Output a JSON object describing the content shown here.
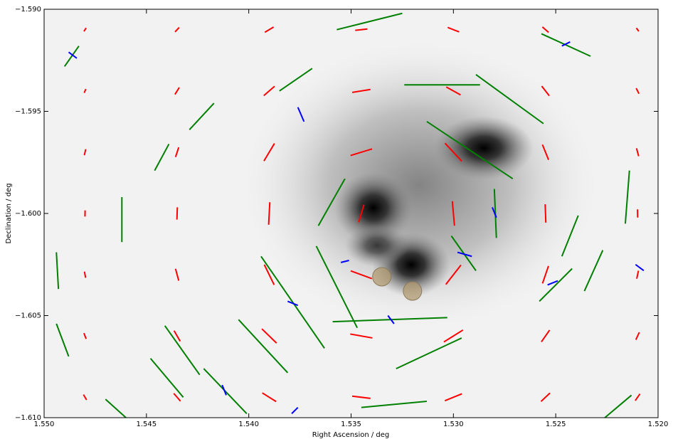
{
  "chart_data": {
    "type": "vector",
    "xlabel": "Right Ascension / deg",
    "ylabel": "Declination / deg",
    "xlim": [
      1.55,
      1.52
    ],
    "ylim": [
      -1.61,
      -1.59
    ],
    "xticks": [
      {
        "value": 1.55,
        "label": "1.550"
      },
      {
        "value": 1.545,
        "label": "1.545"
      },
      {
        "value": 1.54,
        "label": "1.540"
      },
      {
        "value": 1.535,
        "label": "1.535"
      },
      {
        "value": 1.53,
        "label": "1.530"
      },
      {
        "value": 1.525,
        "label": "1.525"
      },
      {
        "value": 1.52,
        "label": "1.520"
      }
    ],
    "yticks": [
      {
        "value": -1.61,
        "label": "−1.610"
      },
      {
        "value": -1.605,
        "label": "−1.605"
      },
      {
        "value": -1.6,
        "label": "−1.600"
      },
      {
        "value": -1.595,
        "label": "−1.595"
      },
      {
        "value": -1.59,
        "label": "−1.590"
      }
    ],
    "field": {
      "color": "#ff0000",
      "grid_x": [
        1.548,
        1.5435,
        1.539,
        1.5345,
        1.53,
        1.5255,
        1.521
      ],
      "grid_y": [
        -1.609,
        -1.606,
        -1.603,
        -1.6,
        -1.597,
        -1.594,
        -1.591
      ],
      "angles": [
        [
          121,
          131,
          148,
          173,
          22,
          43,
          55
        ],
        [
          111,
          120,
          136,
          170,
          32,
          55,
          65
        ],
        [
          100.5,
          105,
          116,
          160,
          52,
          71,
          78
        ],
        [
          88.8,
          88,
          87,
          73,
          95,
          92,
          91
        ],
        [
          77,
          72,
          59,
          17,
          133,
          112,
          105
        ],
        [
          66.5,
          58,
          41,
          9,
          151,
          128,
          117
        ],
        [
          57,
          47,
          31,
          6,
          159,
          139,
          127
        ]
      ],
      "lengths": [
        [
          0.3,
          0.5,
          0.8,
          0.9,
          0.9,
          0.6,
          0.4
        ],
        [
          0.3,
          0.6,
          1.0,
          1.1,
          1.1,
          0.7,
          0.4
        ],
        [
          0.3,
          0.6,
          1.1,
          1.1,
          1.2,
          0.9,
          0.4
        ],
        [
          0.3,
          0.6,
          1.1,
          0.9,
          1.2,
          0.9,
          0.4
        ],
        [
          0.3,
          0.5,
          1.0,
          1.1,
          1.2,
          0.8,
          0.4
        ],
        [
          0.2,
          0.4,
          0.7,
          0.9,
          0.8,
          0.6,
          0.3
        ],
        [
          0.2,
          0.3,
          0.5,
          0.6,
          0.6,
          0.4,
          0.2
        ]
      ]
    },
    "series": [
      {
        "color": "#008000",
        "segments": [
          [
            1.5357,
            -1.591,
            1.5325,
            -1.5902
          ],
          [
            1.5324,
            -1.5937,
            1.5287,
            -1.5937
          ],
          [
            1.5289,
            -1.5932,
            1.5256,
            -1.5956
          ],
          [
            1.5313,
            -1.5955,
            1.5271,
            -1.5983
          ],
          [
            1.5366,
            -1.6006,
            1.5353,
            -1.5983
          ],
          [
            1.5367,
            -1.6016,
            1.5347,
            -1.6056
          ],
          [
            1.5394,
            -1.6021,
            1.5363,
            -1.6066
          ],
          [
            1.5359,
            -1.6053,
            1.5303,
            -1.6051
          ],
          [
            1.5328,
            -1.6076,
            1.5296,
            -1.6061
          ],
          [
            1.5405,
            -1.6052,
            1.5381,
            -1.6078
          ],
          [
            1.5441,
            -1.6055,
            1.5424,
            -1.6079
          ],
          [
            1.5448,
            -1.6071,
            1.5432,
            -1.609
          ],
          [
            1.5422,
            -1.6076,
            1.5401,
            -1.6098
          ],
          [
            1.5301,
            -1.6011,
            1.5289,
            -1.6028
          ],
          [
            1.5258,
            -1.6043,
            1.5242,
            -1.6027
          ],
          [
            1.5247,
            -1.6021,
            1.5239,
            -1.6001
          ],
          [
            1.5236,
            -1.6038,
            1.5227,
            -1.6018
          ],
          [
            1.5216,
            -1.6005,
            1.5214,
            -1.5979
          ],
          [
            1.5385,
            -1.594,
            1.5369,
            -1.5929
          ],
          [
            1.5429,
            -1.5959,
            1.5417,
            -1.5946
          ],
          [
            1.5446,
            -1.5979,
            1.5439,
            -1.5966
          ],
          [
            1.5462,
            -1.5992,
            1.5462,
            -1.6014
          ],
          [
            1.5494,
            -1.6019,
            1.5493,
            -1.6037
          ],
          [
            1.5494,
            -1.6054,
            1.5488,
            -1.607
          ],
          [
            1.549,
            -1.5928,
            1.5483,
            -1.5918
          ],
          [
            1.5257,
            -1.5912,
            1.5233,
            -1.5923
          ],
          [
            1.528,
            -1.5988,
            1.5279,
            -1.6012
          ],
          [
            1.5226,
            -1.61,
            1.5213,
            -1.6089
          ],
          [
            1.5345,
            -1.6095,
            1.5313,
            -1.6092
          ],
          [
            1.547,
            -1.6091,
            1.546,
            -1.61
          ]
        ]
      },
      {
        "color": "#0000ff",
        "segments": [
          [
            1.5488,
            -1.5921,
            1.5484,
            -1.5924
          ],
          [
            1.5376,
            -1.5948,
            1.5373,
            -1.5955
          ],
          [
            1.5298,
            -1.6019,
            1.5291,
            -1.6021
          ],
          [
            1.5355,
            -1.6024,
            1.5351,
            -1.6023
          ],
          [
            1.5381,
            -1.6043,
            1.5376,
            -1.6045
          ],
          [
            1.5332,
            -1.605,
            1.5329,
            -1.6054
          ],
          [
            1.5379,
            -1.6098,
            1.5376,
            -1.6095
          ],
          [
            1.5211,
            -1.6025,
            1.5207,
            -1.6028
          ],
          [
            1.5281,
            -1.5997,
            1.5279,
            -1.6002
          ],
          [
            1.5254,
            -1.6035,
            1.5249,
            -1.6033
          ],
          [
            1.5247,
            -1.5918,
            1.5243,
            -1.5916
          ],
          [
            1.5413,
            -1.6084,
            1.5411,
            -1.6089
          ]
        ]
      }
    ],
    "markers": {
      "color": "#b09a70",
      "x": [
        1.5335,
        1.532
      ],
      "y": [
        -1.6031,
        -1.6038
      ]
    }
  }
}
